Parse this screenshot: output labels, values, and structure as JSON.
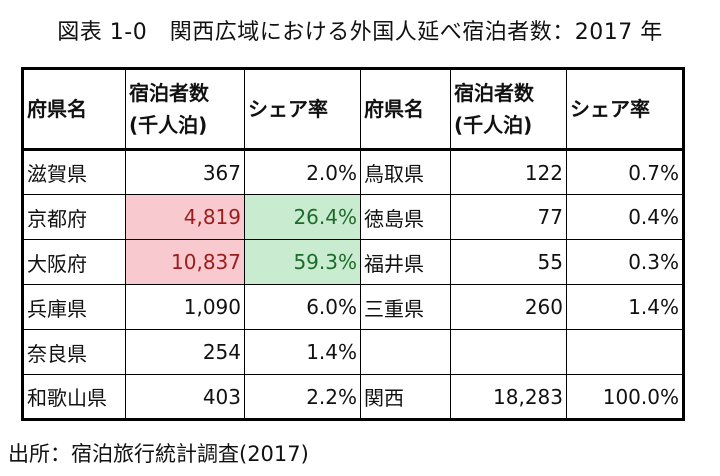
{
  "title": "図表 1-0　関西広域における外国人延べ宿泊者数：2017 年",
  "headers": {
    "pref": "府県名",
    "stays_line1": "宿泊者数",
    "stays_line2": "(千人泊)",
    "share": "シェア率"
  },
  "rows": [
    {
      "left": {
        "pref": "滋賀県",
        "stays": "367",
        "share": "2.0%"
      },
      "right": {
        "pref": "鳥取県",
        "stays": "122",
        "share": "0.7%"
      }
    },
    {
      "left": {
        "pref": "京都府",
        "stays": "4,819",
        "share": "26.4%"
      },
      "right": {
        "pref": "徳島県",
        "stays": "77",
        "share": "0.4%"
      }
    },
    {
      "left": {
        "pref": "大阪府",
        "stays": "10,837",
        "share": "59.3%"
      },
      "right": {
        "pref": "福井県",
        "stays": "55",
        "share": "0.3%"
      }
    },
    {
      "left": {
        "pref": "兵庫県",
        "stays": "1,090",
        "share": "6.0%"
      },
      "right": {
        "pref": "三重県",
        "stays": "260",
        "share": "1.4%"
      }
    },
    {
      "left": {
        "pref": "奈良県",
        "stays": "254",
        "share": "1.4%"
      },
      "right": {
        "pref": "",
        "stays": "",
        "share": ""
      }
    },
    {
      "left": {
        "pref": "和歌山県",
        "stays": "403",
        "share": "2.2%"
      },
      "right": {
        "pref": "関西",
        "stays": "18,283",
        "share": "100.0%"
      }
    }
  ],
  "highlight_colors": {
    "red_bg": "#f8c9cf",
    "red_text": "#9b1c1c",
    "green_bg": "#c9ecd0",
    "green_text": "#1d6b2a"
  },
  "source": "出所：宿泊旅行統計調査(2017)"
}
